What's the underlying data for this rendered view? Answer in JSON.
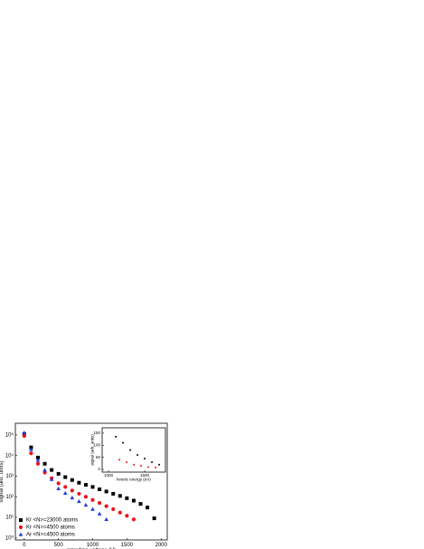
{
  "chart_data": [
    {
      "type": "scatter",
      "x_label": "retarding voltage (V)",
      "y_label": "signal (arb. units)",
      "log_y": true,
      "xlim": [
        -130,
        2090
      ],
      "ylim": [
        0.8,
        370000
      ],
      "xticks": [
        0,
        500,
        1000,
        1500,
        2000
      ],
      "yticks": [
        {
          "value": 1,
          "label": "10⁰"
        },
        {
          "value": 10,
          "label": "10¹"
        },
        {
          "value": 100,
          "label": "10²"
        },
        {
          "value": 1000,
          "label": "10³"
        },
        {
          "value": 10000,
          "label": "10⁴"
        },
        {
          "value": 100000,
          "label": "10⁵"
        }
      ],
      "legend": "lower left",
      "series": [
        {
          "name": "Kr <N>=23000 atoms",
          "color": "#000000",
          "marker": "square",
          "x": [
            0,
            100,
            200,
            300,
            400,
            500,
            600,
            700,
            800,
            900,
            1000,
            1100,
            1200,
            1300,
            1400,
            1500,
            1600,
            1700,
            1800,
            1900
          ],
          "values": [
            110000,
            25000,
            8000,
            4000,
            2000,
            1300,
            900,
            650,
            480,
            380,
            300,
            230,
            180,
            140,
            110,
            85,
            65,
            45,
            30,
            9
          ]
        },
        {
          "name": "Kr <N>=4500 atoms",
          "color": "#e8141c",
          "marker": "circle",
          "x": [
            0,
            100,
            200,
            300,
            400,
            500,
            600,
            700,
            800,
            900,
            1000,
            1100,
            1200,
            1300,
            1400,
            1500,
            1600
          ],
          "values": [
            90000,
            13000,
            4000,
            1500,
            800,
            450,
            300,
            200,
            140,
            100,
            70,
            50,
            35,
            25,
            17,
            12,
            8
          ]
        },
        {
          "name": "Ar <N>=4500 atoms",
          "color": "#1e3cdc",
          "marker": "triangle",
          "x": [
            0,
            100,
            200,
            300,
            400,
            500,
            600,
            700,
            800,
            900,
            1000,
            1100,
            1200
          ],
          "values": [
            130000,
            20000,
            6000,
            2000,
            700,
            250,
            150,
            90,
            60,
            40,
            25,
            15,
            8
          ]
        }
      ]
    },
    {
      "type": "scatter",
      "x_label": "kinetic energy (eV)",
      "y_label": "signal (arb. units)",
      "xlim": [
        912,
        1787
      ],
      "ylim": [
        -11,
        172
      ],
      "xticks": [
        1000,
        1500
      ],
      "yticks": [
        0,
        50,
        100,
        150
      ],
      "series": [
        {
          "color": "#000000",
          "marker": "dot",
          "x": [
            1100,
            1200,
            1300,
            1400,
            1500,
            1600,
            1700
          ],
          "values": [
            135,
            110,
            80,
            60,
            45,
            30,
            20
          ]
        },
        {
          "color": "#e8141c",
          "marker": "dot",
          "x": [
            1150,
            1250,
            1350,
            1450,
            1550,
            1650
          ],
          "values": [
            40,
            30,
            20,
            15,
            10,
            8
          ]
        }
      ]
    }
  ]
}
